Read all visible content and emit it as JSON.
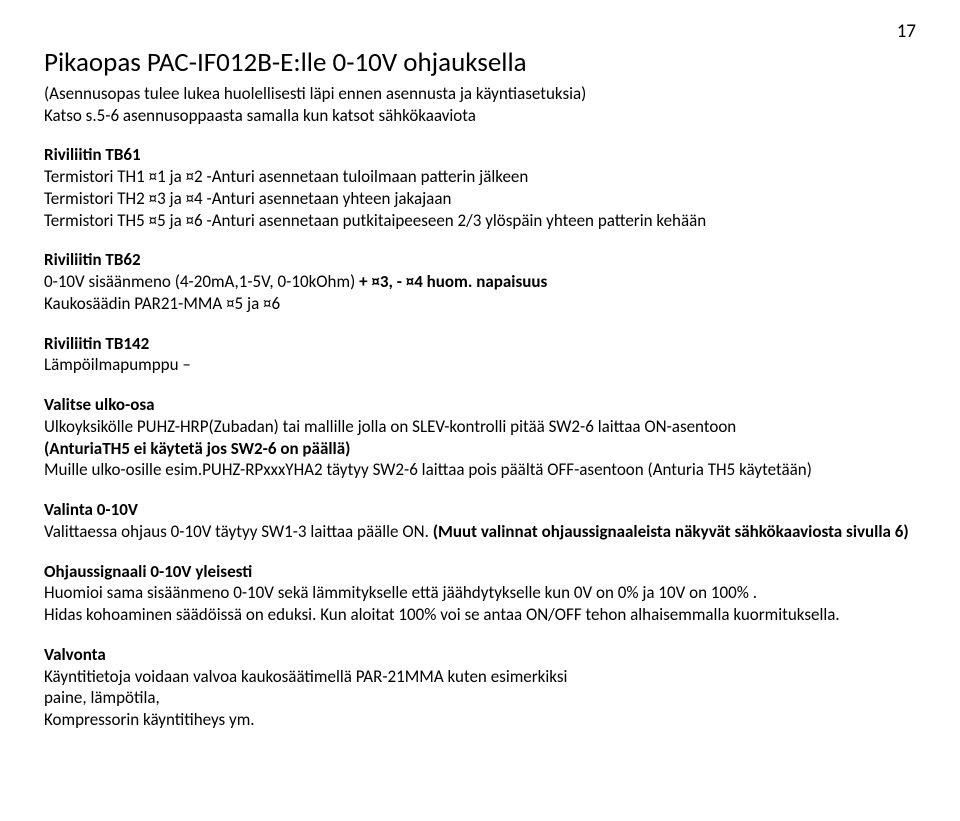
{
  "page_number": "17",
  "title": "Pikaopas PAC-IF012B-E:lle  0-10V ohjauksella",
  "subtitle1": "(Asennusopas tulee lukea huolellisesti läpi ennen asennusta ja käyntiasetuksia)",
  "subtitle2": "Katso s.5-6 asennusoppaasta samalla kun katsot sähkökaaviota",
  "tb61": {
    "header": "Riviliitin TB61",
    "l1": "Termistori TH1 ¤1 ja ¤2  -Anturi asennetaan tuloilmaan patterin jälkeen",
    "l2": "Termistori TH2 ¤3 ja ¤4  -Anturi asennetaan yhteen jakajaan",
    "l3": "Termistori TH5 ¤5 ja ¤6  -Anturi asennetaan putkitaipeeseen 2/3 ylöspäin yhteen patterin kehään"
  },
  "tb62": {
    "header": "Riviliitin TB62",
    "l1a": "0-10V sisäänmeno (4-20mA,1-5V, 0-10kOhm) ",
    "l1b": "+ ¤3, - ¤4 huom. napaisuus",
    "l2": "Kaukosäädin PAR21-MMA ¤5 ja ¤6"
  },
  "tb142": {
    "header": "Riviliitin TB142",
    "l1": "Lämpöilmapumppu –"
  },
  "ulko": {
    "header": "Valitse ulko-osa",
    "l1": "Ulkoyksikölle PUHZ-HRP(Zubadan) tai mallille jolla on SLEV-kontrolli pitää SW2-6 laittaa ON-asentoon",
    "l2_bold": "(AnturiaTH5 ei käytetä jos SW2-6 on päällä)",
    "l3": "Muille ulko-osille esim.PUHZ-RPxxxYHA2 täytyy SW2-6 laittaa pois päältä OFF-asentoon (Anturia TH5 käytetään)"
  },
  "valinta": {
    "header": "Valinta 0-10V",
    "l1a": "Valittaessa ohjaus 0-10V täytyy SW1-3 laittaa päälle ON. ",
    "l1b": "(Muut valinnat ohjaussignaaleista näkyvät sähkökaaviosta sivulla 6)"
  },
  "yleisesti": {
    "header": "Ohjaussignaali 0-10V yleisesti",
    "l1": "Huomioi sama sisäänmeno 0-10V sekä lämmitykselle että jäähdytykselle kun 0V on 0% ja 10V on 100% .",
    "l2": "Hidas kohoaminen säädöissä on eduksi. Kun aloitat 100% voi se antaa ON/OFF tehon alhaisemmalla kuormituksella."
  },
  "valvonta": {
    "header": "Valvonta",
    "l1": "Käyntitietoja voidaan valvoa kaukosäätimellä PAR-21MMA kuten esimerkiksi",
    "l2": "paine, lämpötila,",
    "l3": "Kompressorin käyntitiheys ym."
  }
}
